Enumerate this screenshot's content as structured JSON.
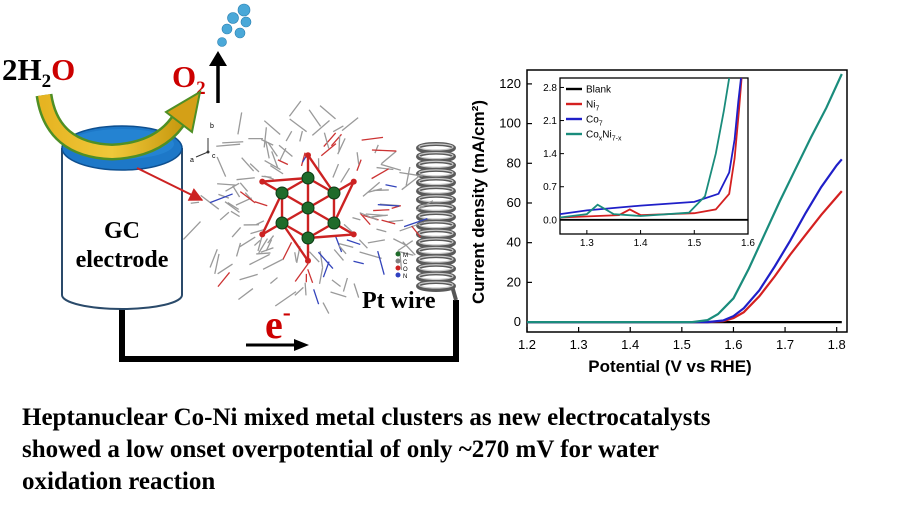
{
  "scheme": {
    "reactant": {
      "coef": "2",
      "h": "H",
      "sub": "2",
      "o": "O"
    },
    "product": {
      "o": "O",
      "sub": "2"
    },
    "electrode_label": [
      "GC",
      "electrode"
    ],
    "counter_label": "Pt wire",
    "electron": {
      "base": "e",
      "sup": "-"
    },
    "axes_labels": {
      "a": "a",
      "b": "b",
      "c": "c"
    },
    "cluster_legend": [
      "M",
      "C",
      "O",
      "N"
    ],
    "colors": {
      "water": "#cc0000",
      "oxygen": "#cc0000",
      "electrode_top": "#1d78c8",
      "arrow": "#d4a017",
      "arrow_edge": "#4f8f25",
      "bubble": "#4aa8d8",
      "metal": "#1f6b2a",
      "bond": "#cc2222"
    }
  },
  "chart_data": {
    "type": "line",
    "xlabel": "Potential (V vs RHE)",
    "ylabel": "Current density (mA/cm²)",
    "xlim": [
      1.2,
      1.82
    ],
    "ylim": [
      -5,
      127
    ],
    "xticks": [
      1.2,
      1.3,
      1.4,
      1.5,
      1.6,
      1.7,
      1.8
    ],
    "yticks": [
      0,
      20,
      40,
      60,
      80,
      100,
      120
    ],
    "series": [
      {
        "name": "Blank",
        "color": "#000000",
        "x": [
          1.2,
          1.81
        ],
        "y": [
          0,
          0
        ]
      },
      {
        "name": "Ni7",
        "color": "#d42020",
        "x": [
          1.2,
          1.55,
          1.58,
          1.6,
          1.62,
          1.65,
          1.68,
          1.71,
          1.74,
          1.77,
          1.8,
          1.81
        ],
        "y": [
          0,
          0,
          0.5,
          2,
          5,
          13,
          23,
          34,
          44,
          54,
          63,
          66
        ]
      },
      {
        "name": "Co7",
        "color": "#1f1fc8",
        "x": [
          1.2,
          1.55,
          1.58,
          1.6,
          1.62,
          1.65,
          1.68,
          1.71,
          1.74,
          1.77,
          1.8,
          1.81
        ],
        "y": [
          0,
          0,
          0.8,
          3,
          7,
          16,
          28,
          41,
          55,
          68,
          79,
          82
        ]
      },
      {
        "name": "CoxNi7-x",
        "color": "#1a8c7c",
        "x": [
          1.2,
          1.52,
          1.55,
          1.57,
          1.6,
          1.63,
          1.66,
          1.69,
          1.72,
          1.75,
          1.78,
          1.81
        ],
        "y": [
          0,
          0,
          1,
          4,
          12,
          27,
          44,
          61,
          77,
          93,
          108,
          125
        ]
      }
    ],
    "legend": [
      {
        "label": "Blank",
        "color": "#000000"
      },
      {
        "label": "Ni",
        "sub": "7",
        "color": "#d42020"
      },
      {
        "label": "Co",
        "sub": "7",
        "color": "#1f1fc8"
      },
      {
        "label": "Co",
        "sub": "x",
        "label2": "Ni",
        "sub2": "7-x",
        "color": "#1a8c7c"
      }
    ],
    "inset": {
      "xlim": [
        1.25,
        1.6
      ],
      "ylim": [
        -0.3,
        3.0
      ],
      "xticks": [
        1.3,
        1.4,
        1.5,
        1.6
      ],
      "yticks": [
        0.0,
        0.7,
        1.4,
        2.1,
        2.8
      ],
      "series": [
        {
          "name": "Blank",
          "color": "#000000",
          "x": [
            1.25,
            1.6
          ],
          "y": [
            0,
            0
          ]
        },
        {
          "name": "Ni7",
          "color": "#d42020",
          "x": [
            1.25,
            1.36,
            1.38,
            1.4,
            1.5,
            1.54,
            1.565,
            1.575,
            1.583,
            1.588
          ],
          "y": [
            0.05,
            0.1,
            0.22,
            0.1,
            0.14,
            0.22,
            0.55,
            1.3,
            2.3,
            3.0
          ]
        },
        {
          "name": "Co7",
          "color": "#1f1fc8",
          "x": [
            1.25,
            1.3,
            1.4,
            1.5,
            1.545,
            1.565,
            1.575,
            1.582,
            1.587
          ],
          "y": [
            0.12,
            0.2,
            0.3,
            0.38,
            0.55,
            1.0,
            1.7,
            2.5,
            3.0
          ]
        },
        {
          "name": "CoxNi7-x",
          "color": "#1a8c7c",
          "x": [
            1.25,
            1.3,
            1.32,
            1.35,
            1.4,
            1.49,
            1.52,
            1.54,
            1.555,
            1.565
          ],
          "y": [
            0.05,
            0.12,
            0.32,
            0.12,
            0.08,
            0.15,
            0.5,
            1.4,
            2.3,
            3.0
          ]
        }
      ]
    }
  },
  "caption": [
    "Heptanuclear Co-Ni mixed metal clusters as new electrocatalysts",
    "showed a low onset overpotential of only ~270 mV for water",
    "oxidation reaction"
  ]
}
